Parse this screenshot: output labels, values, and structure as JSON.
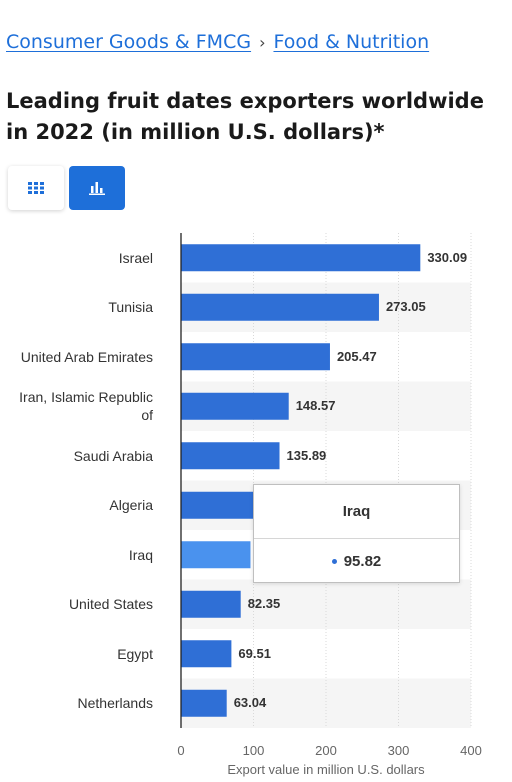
{
  "breadcrumb": {
    "items": [
      {
        "label": "Consumer Goods & FMCG"
      },
      {
        "label": "Food & Nutrition"
      }
    ],
    "separator": "›"
  },
  "title": "Leading fruit dates exporters worldwide in 2022 (in million U.S. dollars)*",
  "view_toggle": {
    "options": [
      {
        "icon": "table-grid-icon",
        "active": false
      },
      {
        "icon": "bar-chart-icon",
        "active": true
      }
    ]
  },
  "colors": {
    "bar": "#2f6fd6",
    "bar_hover": "#4a92ee",
    "accent": "#1e6fd9",
    "band": "#f5f5f5"
  },
  "chart_data": {
    "type": "bar",
    "orientation": "horizontal",
    "categories": [
      "Israel",
      "Tunisia",
      "United Arab Emirates",
      "Iran, Islamic Republic of",
      "Saudi Arabia",
      "Algeria",
      "Iraq",
      "United States",
      "Egypt",
      "Netherlands"
    ],
    "values": [
      330.09,
      273.05,
      205.47,
      148.57,
      135.89,
      121,
      95.82,
      82.35,
      69.51,
      63.04
    ],
    "value_labels": [
      "330.09",
      "273.05",
      "205.47",
      "148.57",
      "135.89",
      "",
      "",
      "82.35",
      "69.51",
      "63.04"
    ],
    "highlighted_index": 6,
    "xlim": [
      0,
      400
    ],
    "xticks": [
      "0",
      "100",
      "200",
      "300",
      "400"
    ],
    "xlabel": "Export value in million U.S. dollars",
    "grid": true,
    "legend": false
  },
  "tooltip": {
    "title": "Iraq",
    "value": "95.82"
  }
}
